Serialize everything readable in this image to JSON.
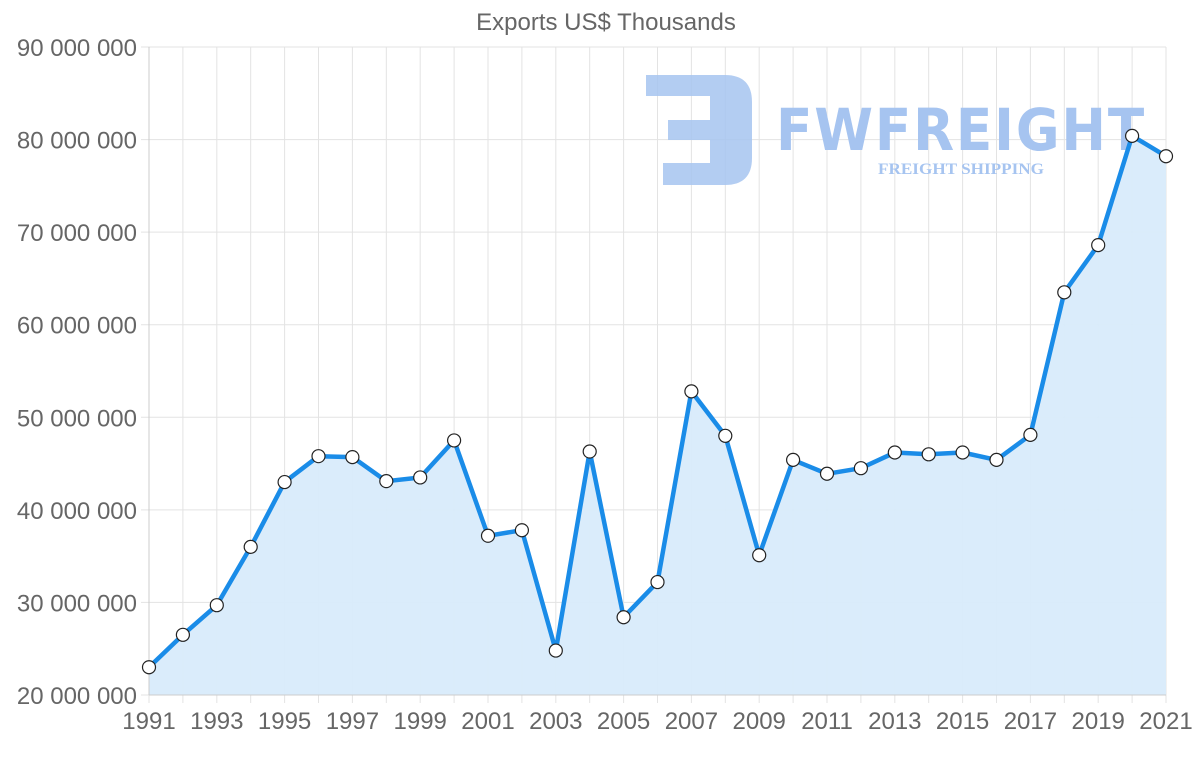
{
  "chart_data": {
    "type": "line",
    "title": "Exports US$ Thousands",
    "xlabel": "",
    "ylabel": "",
    "x": [
      1991,
      1992,
      1993,
      1994,
      1995,
      1996,
      1997,
      1998,
      1999,
      2000,
      2001,
      2002,
      2003,
      2004,
      2005,
      2006,
      2007,
      2008,
      2009,
      2010,
      2011,
      2012,
      2013,
      2014,
      2015,
      2016,
      2017,
      2018,
      2019,
      2020,
      2021
    ],
    "series": [
      {
        "name": "Exports US$ Thousands",
        "values": [
          23000000,
          26500000,
          29700000,
          36000000,
          43000000,
          45800000,
          45700000,
          43100000,
          43500000,
          47500000,
          37200000,
          37800000,
          24800000,
          46300000,
          28400000,
          32200000,
          52800000,
          48000000,
          35100000,
          45400000,
          43900000,
          44500000,
          46200000,
          46000000,
          46200000,
          45400000,
          48100000,
          63500000,
          68600000,
          80400000,
          78200000
        ],
        "color": "#1a8ce8",
        "fill": "#d8ebfb"
      }
    ],
    "ylim": [
      20000000,
      90000000
    ],
    "yticks": [
      "20 000 000",
      "30 000 000",
      "40 000 000",
      "50 000 000",
      "60 000 000",
      "70 000 000",
      "80 000 000",
      "90 000 000"
    ],
    "xticks": [
      "1991",
      "1993",
      "1995",
      "1997",
      "1999",
      "2001",
      "2003",
      "2005",
      "2007",
      "2009",
      "2011",
      "2013",
      "2015",
      "2017",
      "2019",
      "2021"
    ],
    "grid": true,
    "legend": "none"
  },
  "watermark": {
    "brand": "FWFREIGHT",
    "tagline": "FREIGHT SHIPPING",
    "color": "#a6c4f0"
  }
}
